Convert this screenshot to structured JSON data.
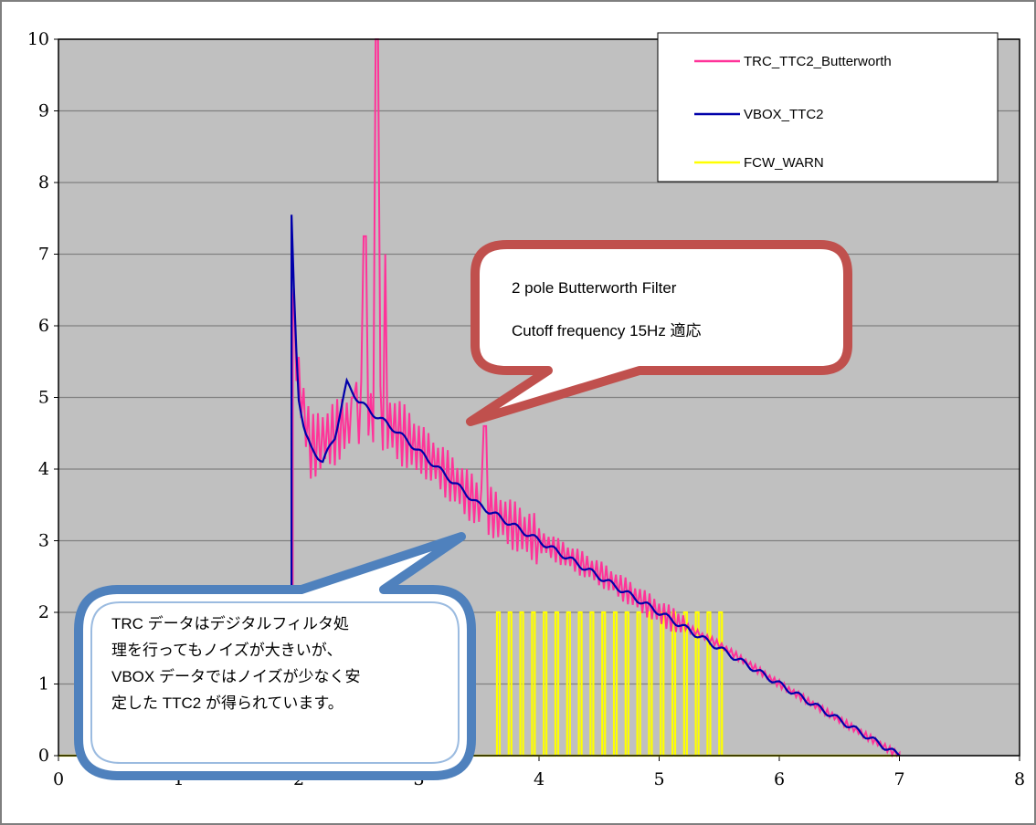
{
  "chart_data": {
    "type": "line",
    "xlim": [
      0,
      8
    ],
    "ylim": [
      0,
      10
    ],
    "x_ticks": [
      "0",
      "1",
      "2",
      "3",
      "4",
      "5",
      "6",
      "7",
      "8"
    ],
    "y_ticks": [
      "0",
      "1",
      "2",
      "3",
      "4",
      "5",
      "6",
      "7",
      "8",
      "9",
      "10"
    ],
    "grid": "horizontal",
    "legend_position": "top-right",
    "plot_background": "#c0c0c0",
    "series": [
      {
        "name": "TRC_TTC2_Butterworth",
        "color": "#ff3399",
        "trend_points": [
          [
            1.95,
            0
          ],
          [
            1.95,
            6.3
          ],
          [
            2.0,
            5.2
          ],
          [
            2.1,
            4.3
          ],
          [
            2.3,
            4.5
          ],
          [
            2.5,
            4.8
          ],
          [
            2.7,
            4.7
          ],
          [
            3.0,
            4.3
          ],
          [
            3.5,
            3.5
          ],
          [
            4.0,
            3.0
          ],
          [
            4.5,
            2.55
          ],
          [
            5.0,
            2.0
          ],
          [
            5.5,
            1.55
          ],
          [
            6.0,
            1.0
          ],
          [
            6.5,
            0.5
          ],
          [
            7.0,
            0
          ]
        ],
        "spikes": [
          [
            2.45,
            5.0
          ],
          [
            2.55,
            7.25
          ],
          [
            2.65,
            10.0
          ],
          [
            2.72,
            7.0
          ],
          [
            3.55,
            4.6
          ]
        ]
      },
      {
        "name": "VBOX_TTC2",
        "color": "#0000aa",
        "points": [
          [
            1.94,
            0
          ],
          [
            1.94,
            7.55
          ],
          [
            1.97,
            6.0
          ],
          [
            2.0,
            5.0
          ],
          [
            2.05,
            4.5
          ],
          [
            2.1,
            4.3
          ],
          [
            2.2,
            4.1
          ],
          [
            2.3,
            4.45
          ],
          [
            2.4,
            5.2
          ],
          [
            2.5,
            4.95
          ],
          [
            2.6,
            4.8
          ],
          [
            2.8,
            4.55
          ],
          [
            3.0,
            4.25
          ],
          [
            3.3,
            3.8
          ],
          [
            3.5,
            3.5
          ],
          [
            4.0,
            3.0
          ],
          [
            4.5,
            2.5
          ],
          [
            5.0,
            2.0
          ],
          [
            5.5,
            1.5
          ],
          [
            6.0,
            1.0
          ],
          [
            6.5,
            0.5
          ],
          [
            7.0,
            0
          ]
        ]
      },
      {
        "name": "FCW_WARN",
        "color": "#ffff00",
        "baseline": 0,
        "pulse_start": 3.65,
        "pulse_end": 5.5,
        "pulse_count": 20,
        "pulse_value": 2
      }
    ],
    "annotations": [
      {
        "lines": [
          "2 pole Butterworth Filter",
          "Cutoff frequency 15Hz  適応"
        ]
      },
      {
        "lines": [
          "TRC  データはデジタルフィルタ処",
          "理を行ってもノイズが大きいが、",
          "VBOX データではノイズが少なく安",
          "定した TTC2 が得られています。"
        ]
      }
    ]
  }
}
